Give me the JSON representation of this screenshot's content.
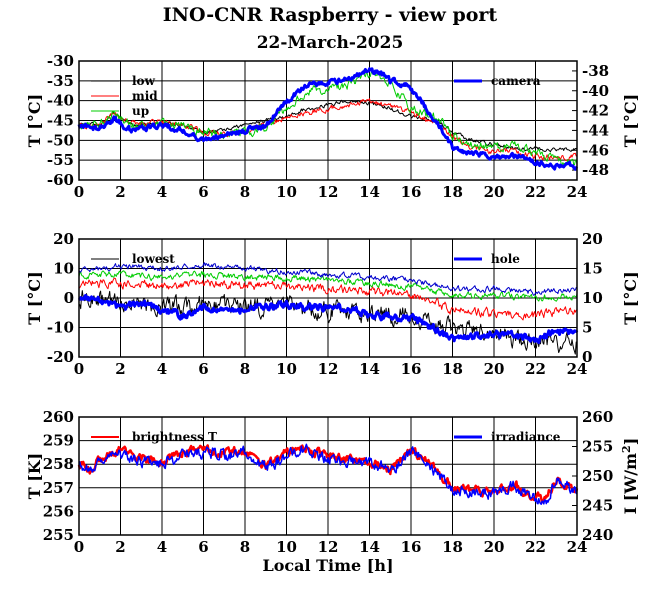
{
  "title": "INO-CNR Raspberry - view port",
  "subtitle": "22-March-2025",
  "chart_data": [
    {
      "type": "line",
      "xlabel": "",
      "ylabel": "T [°C]",
      "ylabel_right": "T [°C]",
      "xlim": [
        0,
        24
      ],
      "ylim": [
        -60,
        -30
      ],
      "ylim_right": [
        -49,
        -37
      ],
      "xticks": [
        "0",
        "2",
        "4",
        "6",
        "8",
        "10",
        "12",
        "14",
        "16",
        "18",
        "20",
        "22",
        "24"
      ],
      "yticks": [
        "-30",
        "-35",
        "-40",
        "-45",
        "-50",
        "-55",
        "-60"
      ],
      "yticks_right": [
        "-38",
        "-40",
        "-42",
        "-44",
        "-46",
        "-48"
      ],
      "legend_left": [
        "low",
        "mid",
        "up"
      ],
      "legend_right": [
        "camera"
      ],
      "series": [
        {
          "name": "low",
          "color": "#000000",
          "axis": "left",
          "width": 1,
          "noise": 0.4,
          "x": [
            0,
            1,
            1.7,
            2.5,
            4,
            5,
            6,
            7,
            8,
            9,
            10,
            11,
            12,
            13,
            14,
            15,
            16,
            17,
            17.5,
            18,
            19,
            20,
            21,
            22,
            23,
            24
          ],
          "y": [
            -46,
            -46,
            -43,
            -46,
            -46,
            -46,
            -48,
            -47.5,
            -46,
            -45,
            -44,
            -42,
            -41,
            -40,
            -40.5,
            -42,
            -44,
            -45,
            -46,
            -48,
            -50,
            -51,
            -52,
            -52,
            -52.5,
            -52
          ]
        },
        {
          "name": "mid",
          "color": "#ff0000",
          "axis": "left",
          "width": 1,
          "noise": 0.6,
          "x": [
            0,
            1,
            1.7,
            2.5,
            4,
            5,
            6,
            7,
            8,
            9,
            10,
            11,
            12,
            13,
            14,
            15,
            16,
            17,
            17.5,
            18,
            19,
            20,
            21,
            22,
            23,
            24
          ],
          "y": [
            -46,
            -46,
            -43,
            -46,
            -45.5,
            -46,
            -48,
            -48.5,
            -48,
            -46,
            -44,
            -43,
            -42,
            -41,
            -40,
            -41.5,
            -43,
            -45,
            -47,
            -49,
            -52,
            -53,
            -53,
            -54,
            -54.5,
            -54
          ]
        },
        {
          "name": "up",
          "color": "#00cc00",
          "axis": "left",
          "width": 1,
          "noise": 0.9,
          "x": [
            0,
            1,
            1.7,
            2.5,
            4,
            5,
            6,
            7,
            8,
            9,
            10,
            11,
            12,
            13,
            14,
            14.5,
            15,
            16,
            17,
            17.5,
            18,
            19,
            20,
            21,
            22,
            23,
            24
          ],
          "y": [
            -46,
            -46,
            -43,
            -46,
            -46,
            -46,
            -48,
            -48.5,
            -48,
            -47,
            -42,
            -38,
            -37,
            -36,
            -33,
            -34,
            -36,
            -42,
            -44,
            -45,
            -49,
            -51,
            -52,
            -51,
            -53,
            -55,
            -56
          ]
        },
        {
          "name": "camera",
          "color": "#0000ff",
          "axis": "right",
          "width": 3,
          "noise": 0.22,
          "x": [
            0,
            1,
            1.7,
            2.5,
            3,
            4,
            5,
            6,
            7,
            8,
            9,
            10,
            11,
            12,
            13,
            14,
            14.5,
            15,
            15.8,
            16.5,
            17,
            17.5,
            18,
            19,
            20,
            21,
            22,
            23,
            24
          ],
          "y": [
            -43.5,
            -43.8,
            -42.8,
            -44,
            -43.8,
            -43.5,
            -44,
            -45,
            -44.5,
            -44,
            -43.5,
            -41,
            -39.5,
            -39.2,
            -38.7,
            -38,
            -38.2,
            -39,
            -39.5,
            -41,
            -42.5,
            -44,
            -45.8,
            -46.3,
            -46.8,
            -46.5,
            -47.2,
            -47.6,
            -47.6
          ]
        }
      ]
    },
    {
      "type": "line",
      "xlabel": "",
      "ylabel": "T [°C]",
      "ylabel_right": "T [°C]",
      "xlim": [
        0,
        24
      ],
      "ylim": [
        -20,
        20
      ],
      "ylim_right": [
        0,
        20
      ],
      "xticks": [
        "0",
        "2",
        "4",
        "6",
        "8",
        "10",
        "12",
        "14",
        "16",
        "18",
        "20",
        "22",
        "24"
      ],
      "yticks": [
        "20",
        "10",
        "0",
        "-10",
        "-20"
      ],
      "yticks_right": [
        "20",
        "15",
        "10",
        "5",
        "0"
      ],
      "legend_left": [
        "lowest"
      ],
      "legend_right": [
        "hole"
      ],
      "series": [
        {
          "name": "lowest",
          "color": "#000000",
          "axis": "left",
          "width": 1,
          "noise": 2.5,
          "x": [
            0,
            2,
            4,
            6,
            8,
            10,
            12,
            14,
            16,
            18,
            20,
            22,
            24
          ],
          "y": [
            0,
            -1,
            -3,
            -2,
            -3,
            -3,
            -4,
            -5,
            -6,
            -10,
            -13,
            -15,
            -15
          ]
        },
        {
          "name": "",
          "color": "#ff0000",
          "axis": "left",
          "width": 1,
          "noise": 1.2,
          "x": [
            0,
            2,
            4,
            6,
            8,
            10,
            12,
            14,
            16,
            18,
            20,
            22,
            24
          ],
          "y": [
            5,
            5,
            4,
            5,
            4,
            4,
            3,
            2,
            1,
            -4,
            -5,
            -6,
            -4
          ]
        },
        {
          "name": "",
          "color": "#00cc00",
          "axis": "left",
          "width": 1,
          "noise": 0.9,
          "x": [
            0,
            2,
            4,
            6,
            8,
            10,
            12,
            14,
            16,
            18,
            20,
            22,
            24
          ],
          "y": [
            8,
            8,
            7,
            8,
            7,
            7,
            6,
            5,
            4,
            1,
            1,
            0,
            1
          ]
        },
        {
          "name": "",
          "color": "#0000cc",
          "axis": "left",
          "width": 1,
          "noise": 0.8,
          "x": [
            0,
            2,
            4,
            6,
            8,
            10,
            12,
            14,
            16,
            18,
            20,
            22,
            24
          ],
          "y": [
            9,
            11,
            10,
            11,
            10,
            9,
            8,
            7,
            6,
            3,
            3,
            2,
            3
          ]
        },
        {
          "name": "hole",
          "color": "#0000ff",
          "axis": "right",
          "width": 3,
          "noise": 0.5,
          "x": [
            0,
            1,
            2,
            3,
            4,
            5,
            6,
            7,
            8,
            9,
            10,
            11,
            12,
            13,
            14,
            15,
            16,
            17,
            18,
            19,
            20,
            21,
            22,
            23,
            24
          ],
          "y": [
            10,
            9.5,
            8.5,
            9,
            8,
            7,
            8.5,
            8,
            8,
            8.5,
            9,
            8.5,
            8.5,
            8,
            7,
            7,
            6.5,
            5,
            3,
            3.5,
            4,
            3.5,
            3,
            4.5,
            4
          ]
        }
      ]
    },
    {
      "type": "line",
      "xlabel": "Local Time [h]",
      "ylabel": "T [K]",
      "ylabel_right": "I [W/m",
      "ylabel_right_sup": "2",
      "ylabel_right_end": "]",
      "xlim": [
        0,
        24
      ],
      "ylim": [
        255,
        260
      ],
      "ylim_right": [
        240,
        260
      ],
      "xticks": [
        "0",
        "2",
        "4",
        "6",
        "8",
        "10",
        "12",
        "14",
        "16",
        "18",
        "20",
        "22",
        "24"
      ],
      "yticks": [
        "260",
        "259",
        "258",
        "257",
        "256",
        "255"
      ],
      "yticks_right": [
        "260",
        "255",
        "250",
        "245",
        "240"
      ],
      "legend_left": [
        "brightness T"
      ],
      "legend_right": [
        "irradiance"
      ],
      "series": [
        {
          "name": "brightness T",
          "color": "#ff0000",
          "axis": "left",
          "width": 2.5,
          "noise": 0.15,
          "x": [
            0,
            0.5,
            1,
            2,
            3,
            4,
            5,
            6,
            7,
            8,
            9,
            10,
            11,
            12,
            13,
            14,
            15,
            16,
            16.5,
            17,
            18,
            19,
            20,
            21,
            22,
            22.5,
            23,
            24
          ],
          "y": [
            258,
            257.8,
            258.2,
            258.6,
            258.2,
            258.1,
            258.5,
            258.6,
            258.5,
            258.6,
            257.9,
            258.5,
            258.7,
            258.3,
            258.2,
            258.1,
            257.8,
            258.6,
            258.3,
            258,
            257,
            256.9,
            256.8,
            257.1,
            256.6,
            256.5,
            257.4,
            256.9
          ]
        },
        {
          "name": "irradiance",
          "color": "#0000ff",
          "axis": "right",
          "width": 1.5,
          "noise": 0.8,
          "x": [
            0,
            0.5,
            1,
            2,
            3,
            4,
            5,
            6,
            7,
            8,
            9,
            10,
            11,
            12,
            13,
            14,
            15,
            16,
            16.5,
            17,
            18,
            19,
            20,
            21,
            22,
            22.5,
            23,
            24
          ],
          "y": [
            252,
            251,
            252.5,
            254,
            252.5,
            252,
            253.5,
            254,
            253.5,
            254,
            251.5,
            253.5,
            254.5,
            253,
            252.5,
            252,
            251,
            254,
            253,
            251.5,
            248,
            247.5,
            247,
            248.5,
            246,
            245.5,
            249.5,
            247.5
          ]
        }
      ]
    }
  ]
}
